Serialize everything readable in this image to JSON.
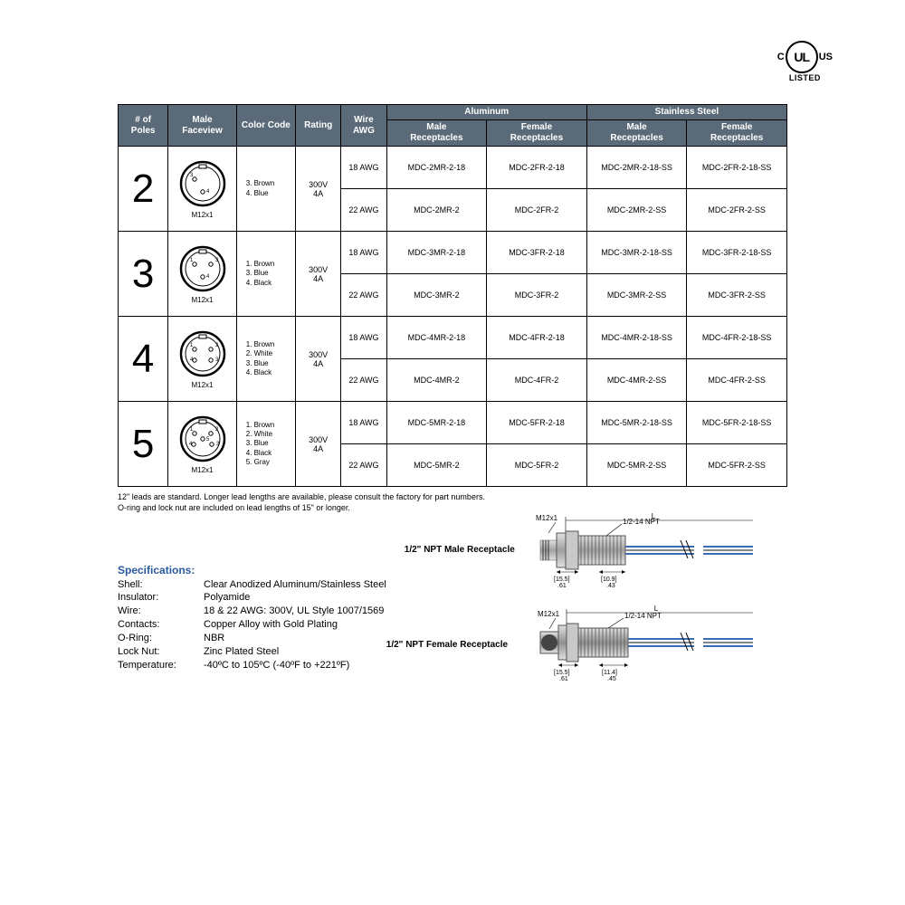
{
  "ul": {
    "left": "C",
    "center": "UL",
    "right": "US",
    "listed": "LISTED"
  },
  "headers": {
    "poles": "# of\nPoles",
    "faceview": "Male\nFaceview",
    "color": "Color Code",
    "rating": "Rating",
    "awg": "Wire\nAWG",
    "aluminum": "Aluminum",
    "stainless": "Stainless Steel",
    "male_r": "Male\nReceptacles",
    "female_r": "Female\nReceptacles"
  },
  "thread_label": "M12x1",
  "rows": [
    {
      "poles": "2",
      "pins": [
        {
          "n": "3",
          "x": -9,
          "y": -5
        },
        {
          "n": "4",
          "x": 0,
          "y": 9
        }
      ],
      "colors": "3. Brown\n4. Blue",
      "rating": "300V\n4A",
      "awg": [
        "18 AWG",
        "22 AWG"
      ],
      "parts": [
        [
          "MDC-2MR-2-18",
          "MDC-2FR-2-18",
          "MDC-2MR-2-18-SS",
          "MDC-2FR-2-18-SS"
        ],
        [
          "MDC-2MR-2",
          "MDC-2FR-2",
          "MDC-2MR-2-SS",
          "MDC-2FR-2-SS"
        ]
      ]
    },
    {
      "poles": "3",
      "pins": [
        {
          "n": "1",
          "x": -9,
          "y": -5
        },
        {
          "n": "3",
          "x": 9,
          "y": -5
        },
        {
          "n": "4",
          "x": 0,
          "y": 9
        }
      ],
      "colors": "1. Brown\n3. Blue\n4. Black",
      "rating": "300V\n4A",
      "awg": [
        "18 AWG",
        "22 AWG"
      ],
      "parts": [
        [
          "MDC-3MR-2-18",
          "MDC-3FR-2-18",
          "MDC-3MR-2-18-SS",
          "MDC-3FR-2-18-SS"
        ],
        [
          "MDC-3MR-2",
          "MDC-3FR-2",
          "MDC-3MR-2-SS",
          "MDC-3FR-2-SS"
        ]
      ]
    },
    {
      "poles": "4",
      "pins": [
        {
          "n": "1",
          "x": -9,
          "y": -5
        },
        {
          "n": "2",
          "x": 9,
          "y": -5
        },
        {
          "n": "3",
          "x": 9,
          "y": 7
        },
        {
          "n": "4",
          "x": -9,
          "y": 7
        }
      ],
      "colors": "1. Brown\n2. White\n3. Blue\n4. Black",
      "rating": "300V\n4A",
      "awg": [
        "18 AWG",
        "22 AWG"
      ],
      "parts": [
        [
          "MDC-4MR-2-18",
          "MDC-4FR-2-18",
          "MDC-4MR-2-18-SS",
          "MDC-4FR-2-18-SS"
        ],
        [
          "MDC-4MR-2",
          "MDC-4FR-2",
          "MDC-4MR-2-SS",
          "MDC-4FR-2-SS"
        ]
      ]
    },
    {
      "poles": "5",
      "pins": [
        {
          "n": "1",
          "x": -9,
          "y": -6
        },
        {
          "n": "2",
          "x": 9,
          "y": -6
        },
        {
          "n": "3",
          "x": 10,
          "y": 6
        },
        {
          "n": "4",
          "x": -10,
          "y": 6
        },
        {
          "n": "5",
          "x": 0,
          "y": 0
        }
      ],
      "colors": "1. Brown\n2. White\n3. Blue\n4. Black\n5. Gray",
      "rating": "300V\n4A",
      "awg": [
        "18 AWG",
        "22 AWG"
      ],
      "parts": [
        [
          "MDC-5MR-2-18",
          "MDC-5FR-2-18",
          "MDC-5MR-2-18-SS",
          "MDC-5FR-2-18-SS"
        ],
        [
          "MDC-5MR-2",
          "MDC-5FR-2",
          "MDC-5MR-2-SS",
          "MDC-5FR-2-SS"
        ]
      ]
    }
  ],
  "footnote": "12\" leads are standard.  Longer lead lengths are available, please consult the factory for part numbers.\nO-ring and lock nut are included on lead lengths of 15\" or longer.",
  "specs": {
    "title": "Specifications:",
    "items": [
      [
        "Shell:",
        "Clear Anodized Aluminum/Stainless Steel"
      ],
      [
        "Insulator:",
        "Polyamide"
      ],
      [
        "Wire:",
        "18 & 22 AWG: 300V, UL Style 1007/1569"
      ],
      [
        "Contacts:",
        "Copper Alloy with Gold Plating"
      ],
      [
        "O-Ring:",
        "NBR"
      ],
      [
        "Lock Nut:",
        "Zinc Plated Steel"
      ],
      [
        "Temperature:",
        "-40ºC to 105ºC (-40ºF to +221ºF)"
      ]
    ]
  },
  "diagrams": {
    "male_label": "1/2\" NPT Male Receptacle",
    "female_label": "1/2\" NPT Female Receptacle",
    "annot": {
      "m12": "M12x1",
      "npt": "1/2-14 NPT",
      "L": "L",
      "male_left": "[15.5]\n.61",
      "male_right": "[10.9]\n.43",
      "female_left": "[15.5]\n.61",
      "female_right": "[11.4]\n.45"
    }
  },
  "colors": {
    "header_bg": "#5a6a78",
    "header_fg": "#ffffff",
    "border": "#000000",
    "specs_title": "#2a5a9e",
    "wire_blue": "#3b6db5",
    "wire_gray": "#888888",
    "metal_light": "#d0d0d0",
    "metal_dark": "#808080"
  }
}
